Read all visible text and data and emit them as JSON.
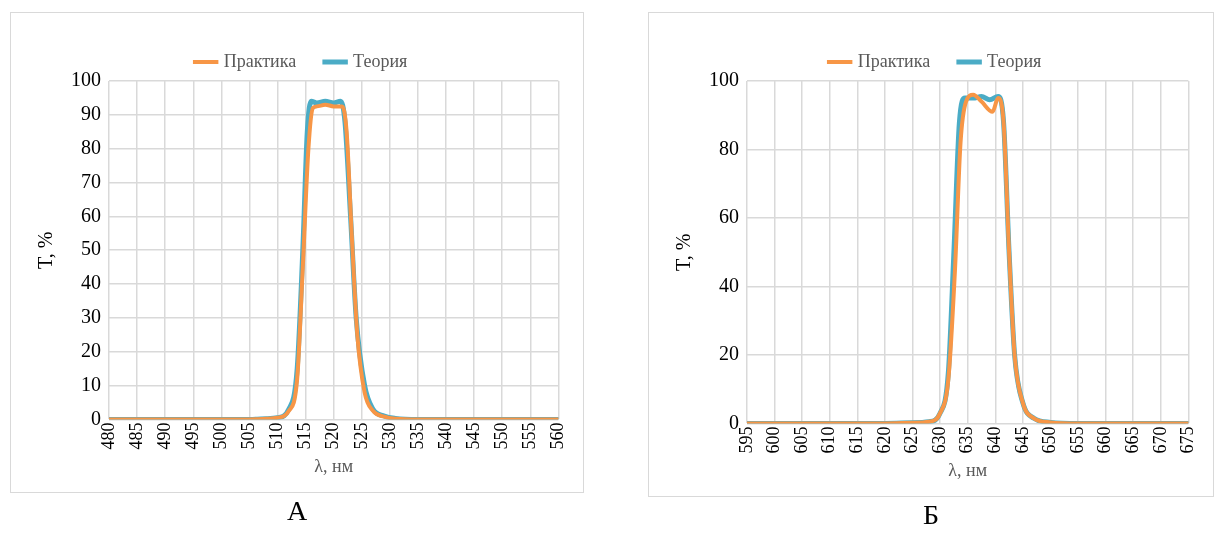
{
  "chart_data": [
    {
      "type": "line",
      "xlabel": "λ, нм",
      "ylabel": "T, %",
      "annotations": [
        "А"
      ],
      "xlim": [
        480,
        560
      ],
      "xticks": [
        480,
        485,
        490,
        495,
        500,
        505,
        510,
        515,
        520,
        525,
        530,
        535,
        540,
        545,
        550,
        555,
        560
      ],
      "ylim": [
        0,
        100
      ],
      "yticks": [
        0,
        10,
        20,
        30,
        40,
        50,
        60,
        70,
        80,
        90,
        100
      ],
      "grid": true,
      "legend": "top",
      "marker": "none",
      "series": [
        {
          "name": "Практика",
          "color": "#f79646",
          "x": [
            480,
            505,
            508,
            510,
            512,
            513.5,
            514.5,
            515.5,
            516.3,
            517,
            518.5,
            520,
            521.5,
            522.3,
            523.2,
            524.2,
            525.5,
            527,
            529,
            531,
            535,
            560
          ],
          "values": [
            0,
            0,
            0.2,
            0.5,
            2.5,
            12,
            45,
            80,
            92,
            92.5,
            93,
            92.5,
            92.5,
            85,
            55,
            25,
            8,
            2.5,
            0.8,
            0.2,
            0,
            0
          ]
        },
        {
          "name": "Теория",
          "color": "#4bacc6",
          "x": [
            480,
            505,
            508,
            510,
            512,
            513.5,
            514.5,
            515.3,
            516,
            517,
            518.5,
            520,
            521.2,
            522,
            523,
            524,
            525.5,
            527,
            529,
            531,
            535,
            560
          ],
          "values": [
            0,
            0,
            0.2,
            0.5,
            3,
            15,
            50,
            85,
            94,
            93.5,
            94,
            93.5,
            94,
            88,
            60,
            30,
            10,
            3,
            1,
            0.3,
            0,
            0
          ]
        }
      ]
    },
    {
      "type": "line",
      "xlabel": "λ, нм",
      "ylabel": "T, %",
      "annotations": [
        "Б"
      ],
      "xlim": [
        595,
        675
      ],
      "xticks": [
        595,
        600,
        605,
        610,
        615,
        620,
        625,
        630,
        635,
        640,
        645,
        650,
        655,
        660,
        665,
        670,
        675
      ],
      "ylim": [
        0,
        100
      ],
      "yticks": [
        0,
        20,
        40,
        60,
        80,
        100
      ],
      "grid": true,
      "legend": "top",
      "marker": "none",
      "series": [
        {
          "name": "Практика",
          "color": "#f79646",
          "x": [
            595,
            620,
            625,
            628,
            630,
            631.5,
            632.7,
            633.7,
            634.7,
            636,
            637.5,
            639.5,
            640.5,
            641.5,
            642.5,
            643.5,
            645,
            647,
            650,
            655,
            675
          ],
          "values": [
            0,
            0,
            0.2,
            0.5,
            3,
            13,
            45,
            82,
            94,
            96,
            94,
            91,
            95,
            88,
            50,
            20,
            6,
            1.5,
            0.3,
            0,
            0
          ]
        },
        {
          "name": "Теория",
          "color": "#4bacc6",
          "x": [
            595,
            620,
            625,
            628,
            630,
            631.5,
            632.5,
            633.5,
            634.5,
            636,
            637.5,
            639,
            640.5,
            641.5,
            642.5,
            643.5,
            645,
            647,
            650,
            655,
            675
          ],
          "values": [
            0,
            0,
            0.2,
            0.5,
            3,
            15,
            50,
            88,
            95,
            95,
            95.5,
            94.5,
            95.5,
            88,
            50,
            20,
            6,
            1.5,
            0.3,
            0,
            0
          ]
        }
      ]
    }
  ]
}
